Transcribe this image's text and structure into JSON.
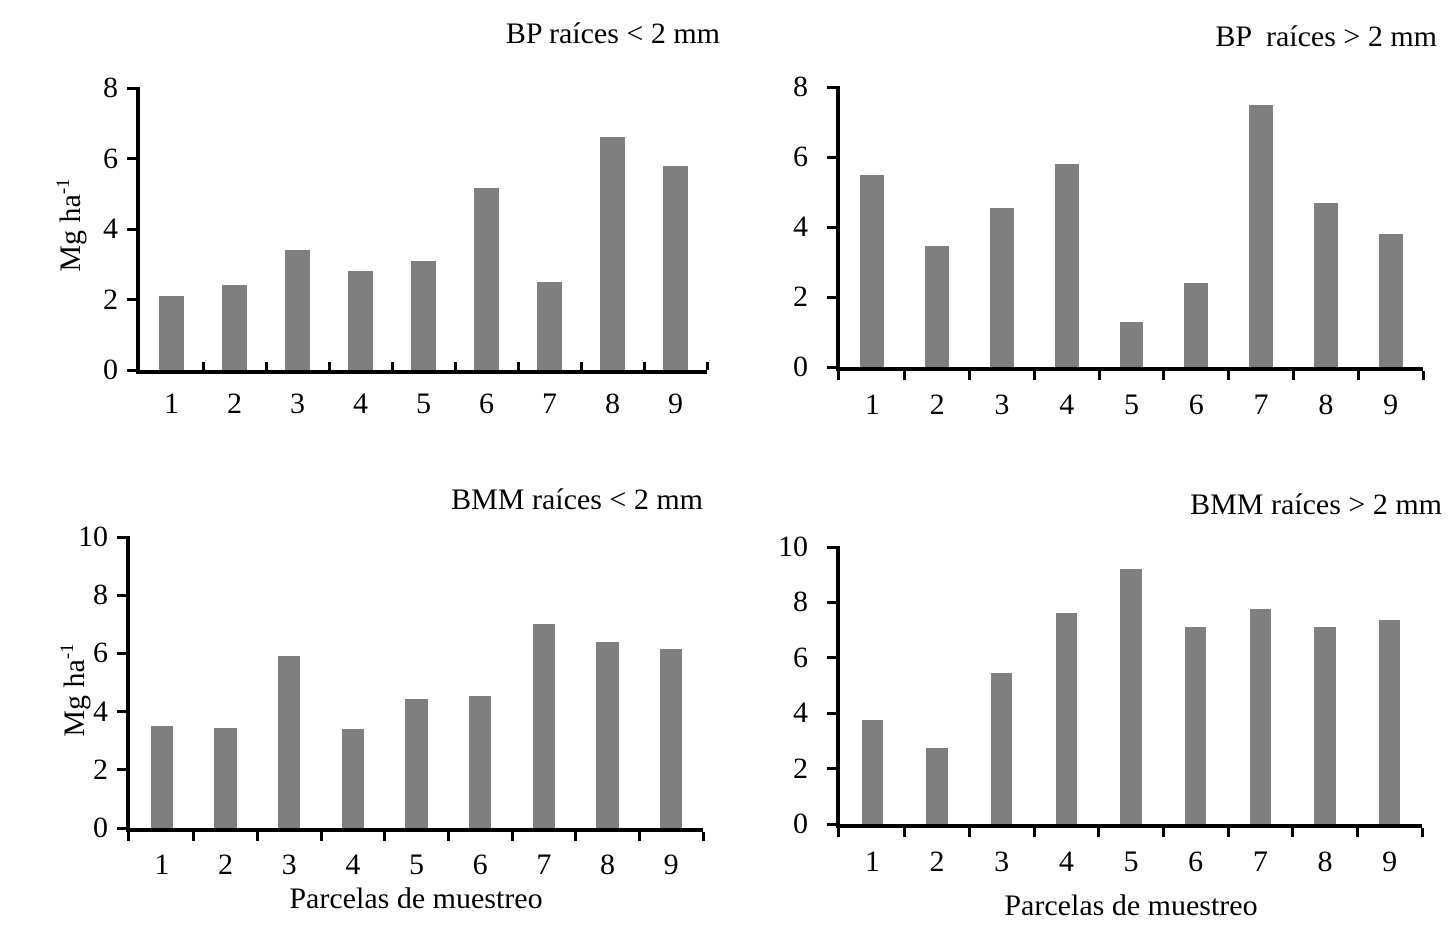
{
  "page": {
    "background": "#ffffff",
    "text_color": "#000000"
  },
  "shared": {
    "bar_color": "#7f7f7f",
    "axis_color": "#000000",
    "y_axis_label_main": "Mg ha",
    "y_axis_label_sup": "-1",
    "x_axis_label": "Parcelas de muestreo"
  },
  "chart_data": [
    {
      "type": "bar",
      "title": "BP raíces < 2 mm",
      "ylabel_main": "Mg ha",
      "ylabel_sup": "-1",
      "xlabel": "",
      "categories": [
        "1",
        "2",
        "3",
        "4",
        "5",
        "6",
        "7",
        "8",
        "9"
      ],
      "values": [
        2.1,
        2.4,
        3.4,
        2.8,
        3.1,
        5.15,
        2.5,
        6.6,
        5.8
      ],
      "ylim": [
        0,
        8
      ],
      "yticks": [
        0,
        2,
        4,
        6,
        8
      ],
      "grid": false,
      "legend": "none",
      "x_tick_style": "inside"
    },
    {
      "type": "bar",
      "title": "BP  raíces > 2 mm",
      "ylabel_main": "",
      "ylabel_sup": "",
      "xlabel": "",
      "categories": [
        "1",
        "2",
        "3",
        "4",
        "5",
        "6",
        "7",
        "8",
        "9"
      ],
      "values": [
        5.5,
        3.45,
        4.55,
        5.8,
        1.3,
        2.4,
        7.5,
        4.7,
        3.8
      ],
      "ylim": [
        0,
        8
      ],
      "yticks": [
        0,
        2,
        4,
        6,
        8
      ],
      "grid": false,
      "legend": "none",
      "x_tick_style": "outside"
    },
    {
      "type": "bar",
      "title": "BMM raíces < 2 mm",
      "ylabel_main": "Mg ha",
      "ylabel_sup": "-1",
      "xlabel": "Parcelas de muestreo",
      "categories": [
        "1",
        "2",
        "3",
        "4",
        "5",
        "6",
        "7",
        "8",
        "9"
      ],
      "values": [
        3.5,
        3.45,
        5.9,
        3.4,
        4.45,
        4.55,
        7.0,
        6.4,
        6.15
      ],
      "ylim": [
        0,
        10
      ],
      "yticks": [
        0,
        2,
        4,
        6,
        8,
        10
      ],
      "grid": false,
      "legend": "none",
      "x_tick_style": "outside"
    },
    {
      "type": "bar",
      "title": "BMM raíces > 2 mm",
      "ylabel_main": "",
      "ylabel_sup": "",
      "xlabel": "Parcelas de muestreo",
      "categories": [
        "1",
        "2",
        "3",
        "4",
        "5",
        "6",
        "7",
        "8",
        "9"
      ],
      "values": [
        3.75,
        2.75,
        5.45,
        7.6,
        9.2,
        7.1,
        7.75,
        7.1,
        7.35
      ],
      "ylim": [
        0,
        10
      ],
      "yticks": [
        0,
        2,
        4,
        6,
        8,
        10
      ],
      "grid": false,
      "legend": "none",
      "x_tick_style": "outside"
    }
  ]
}
